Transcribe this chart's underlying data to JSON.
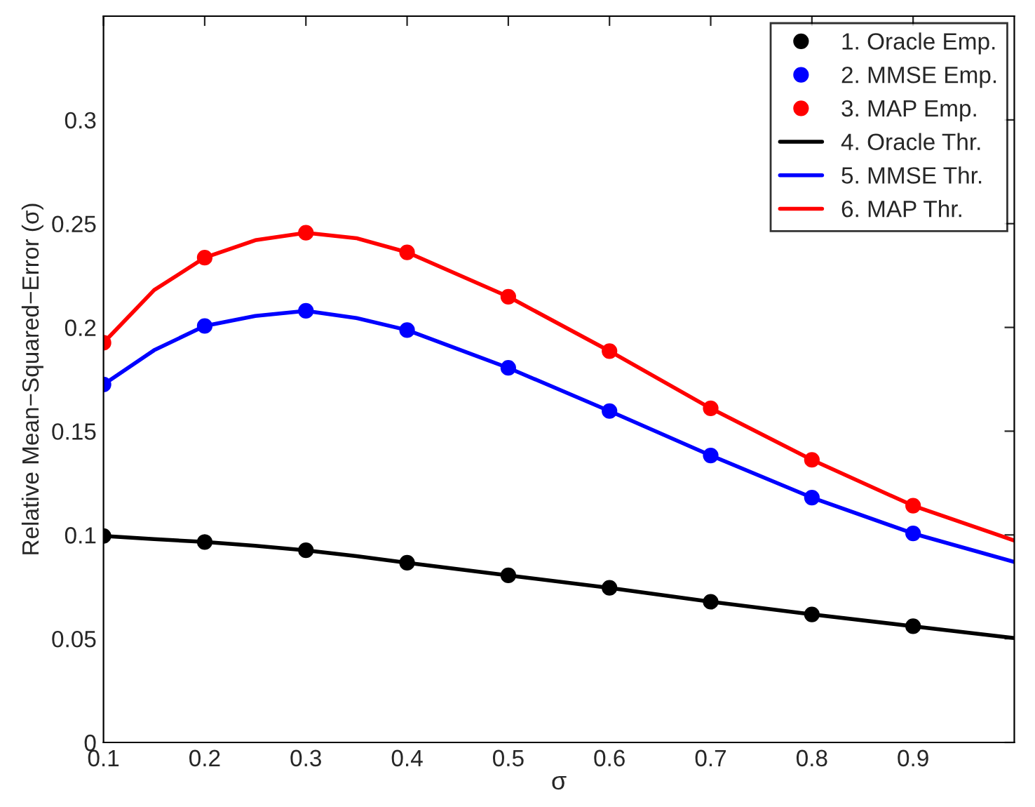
{
  "chart_data": {
    "type": "line",
    "xlabel": "σ",
    "ylabel": "Relative Mean−Squared−Error (σ)",
    "xlim": [
      0.1,
      1.0
    ],
    "ylim": [
      0,
      0.35
    ],
    "xticks": [
      0.1,
      0.2,
      0.3,
      0.4,
      0.5,
      0.6,
      0.7,
      0.8,
      0.9
    ],
    "yticks": [
      0,
      0.05,
      0.1,
      0.15,
      0.2,
      0.25,
      0.3
    ],
    "grid": false,
    "legend": "top right",
    "series": [
      {
        "name": "1. Oracle Emp.",
        "type": "scatter",
        "marker": "circle",
        "color": "#000000",
        "x": [
          0.1,
          0.2,
          0.3,
          0.4,
          0.5,
          0.6,
          0.7,
          0.8,
          0.9
        ],
        "values": [
          0.0995,
          0.0966,
          0.0926,
          0.0866,
          0.0805,
          0.0745,
          0.0678,
          0.0617,
          0.056
        ]
      },
      {
        "name": "2. MMSE Emp.",
        "type": "scatter",
        "marker": "circle",
        "color": "#0000ff",
        "x": [
          0.1,
          0.2,
          0.3,
          0.4,
          0.5,
          0.6,
          0.7,
          0.8,
          0.9
        ],
        "values": [
          0.1725,
          0.2007,
          0.208,
          0.1987,
          0.1805,
          0.1597,
          0.1383,
          0.118,
          0.1007
        ]
      },
      {
        "name": "3. MAP Emp.",
        "type": "scatter",
        "marker": "circle",
        "color": "#ff0000",
        "x": [
          0.1,
          0.2,
          0.3,
          0.4,
          0.5,
          0.6,
          0.7,
          0.8,
          0.9
        ],
        "values": [
          0.1926,
          0.2336,
          0.2456,
          0.2362,
          0.2148,
          0.1886,
          0.161,
          0.1362,
          0.1141
        ]
      },
      {
        "name": "4. Oracle Thr.",
        "color": "#000000",
        "x": [
          0.1,
          0.15,
          0.2,
          0.25,
          0.3,
          0.35,
          0.4,
          0.5,
          0.6,
          0.7,
          0.8,
          0.9,
          1.0
        ],
        "values": [
          0.0995,
          0.098,
          0.0966,
          0.0948,
          0.0926,
          0.0898,
          0.0866,
          0.0805,
          0.0745,
          0.0678,
          0.0617,
          0.056,
          0.0503
        ]
      },
      {
        "name": "5. MMSE Thr.",
        "color": "#0000ff",
        "x": [
          0.1,
          0.15,
          0.2,
          0.25,
          0.3,
          0.35,
          0.4,
          0.5,
          0.6,
          0.7,
          0.8,
          0.9,
          1.0
        ],
        "values": [
          0.1725,
          0.189,
          0.2007,
          0.2055,
          0.208,
          0.2045,
          0.1987,
          0.1805,
          0.1597,
          0.1383,
          0.118,
          0.1007,
          0.087
        ]
      },
      {
        "name": "6. MAP Thr.",
        "color": "#ff0000",
        "x": [
          0.1,
          0.15,
          0.2,
          0.25,
          0.3,
          0.35,
          0.4,
          0.5,
          0.6,
          0.7,
          0.8,
          0.9,
          1.0
        ],
        "values": [
          0.1926,
          0.218,
          0.2336,
          0.242,
          0.2456,
          0.243,
          0.2362,
          0.2148,
          0.1886,
          0.161,
          0.1362,
          0.1141,
          0.0973
        ]
      }
    ]
  }
}
